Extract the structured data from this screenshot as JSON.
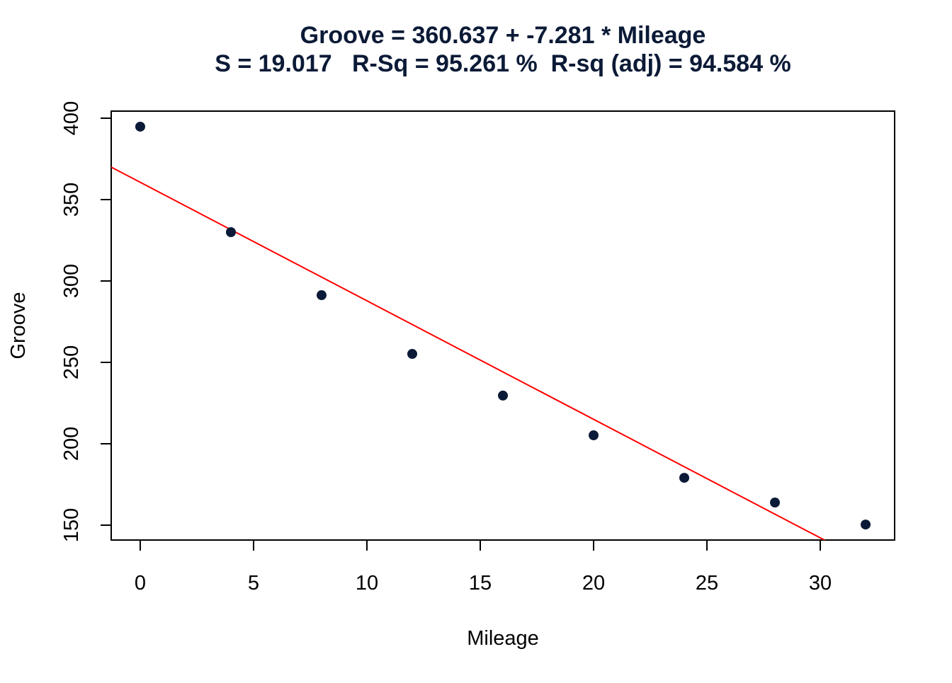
{
  "chart_data": {
    "type": "scatter",
    "title": [
      "Groove = 360.637 + -7.281 * Mileage",
      "S = 19.017   R-Sq = 95.261 %  R-sq (adj) = 94.584 %"
    ],
    "x_label": "Mileage",
    "y_label": "Groove",
    "x": [
      0,
      4,
      8,
      12,
      16,
      20,
      24,
      28,
      32
    ],
    "series": [
      {
        "color": "#0b1a36",
        "values": [
          394.8,
          330,
          291.3,
          255.2,
          229.6,
          205.2,
          179.1,
          163.9,
          150.4
        ]
      }
    ],
    "fit": {
      "intercept": 360.637,
      "slope": -7.281,
      "color": "#ff0000"
    },
    "xlim": [
      -1.28,
      33.28
    ],
    "ylim": [
      140.87,
      404.35
    ],
    "xticks": [
      0,
      5,
      10,
      15,
      20,
      25,
      30
    ],
    "yticks": [
      150,
      200,
      250,
      300,
      350,
      400
    ]
  }
}
